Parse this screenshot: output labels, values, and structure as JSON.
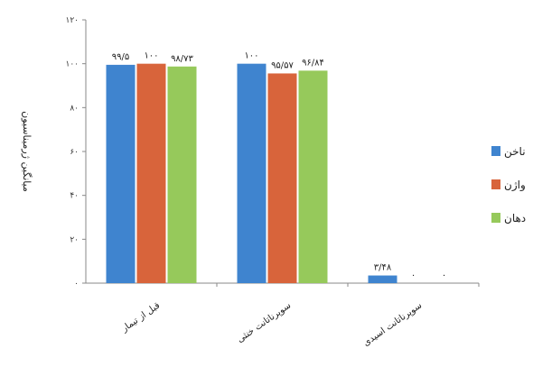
{
  "chart_data": {
    "type": "bar",
    "ylabel": "میانگین ژرمیناسیون",
    "ylim": [
      0,
      120
    ],
    "y_ticks": [
      "۰",
      "۲۰",
      "۴۰",
      "۶۰",
      "۸۰",
      "۱۰۰",
      "۱۲۰"
    ],
    "categories": [
      "قبل از تیمار",
      "سوپرناتانت خنثی",
      "سوپرناتانت اسیدی"
    ],
    "series": [
      {
        "name": "ناخن",
        "color": "#3f84cf",
        "values": [
          99.5,
          100,
          3.48
        ],
        "labels": [
          "۹۹/۵",
          "۱۰۰",
          "۳/۴۸"
        ]
      },
      {
        "name": "واژن",
        "color": "#d8643b",
        "values": [
          100,
          95.57,
          0
        ],
        "labels": [
          "۱۰۰",
          "۹۵/۵۷",
          "۰"
        ]
      },
      {
        "name": "دهان",
        "color": "#96c95b",
        "values": [
          98.73,
          96.84,
          0
        ],
        "labels": [
          "۹۸/۷۳",
          "۹۶/۸۴",
          "۰"
        ]
      }
    ],
    "legend_position": "right",
    "grid": false
  }
}
